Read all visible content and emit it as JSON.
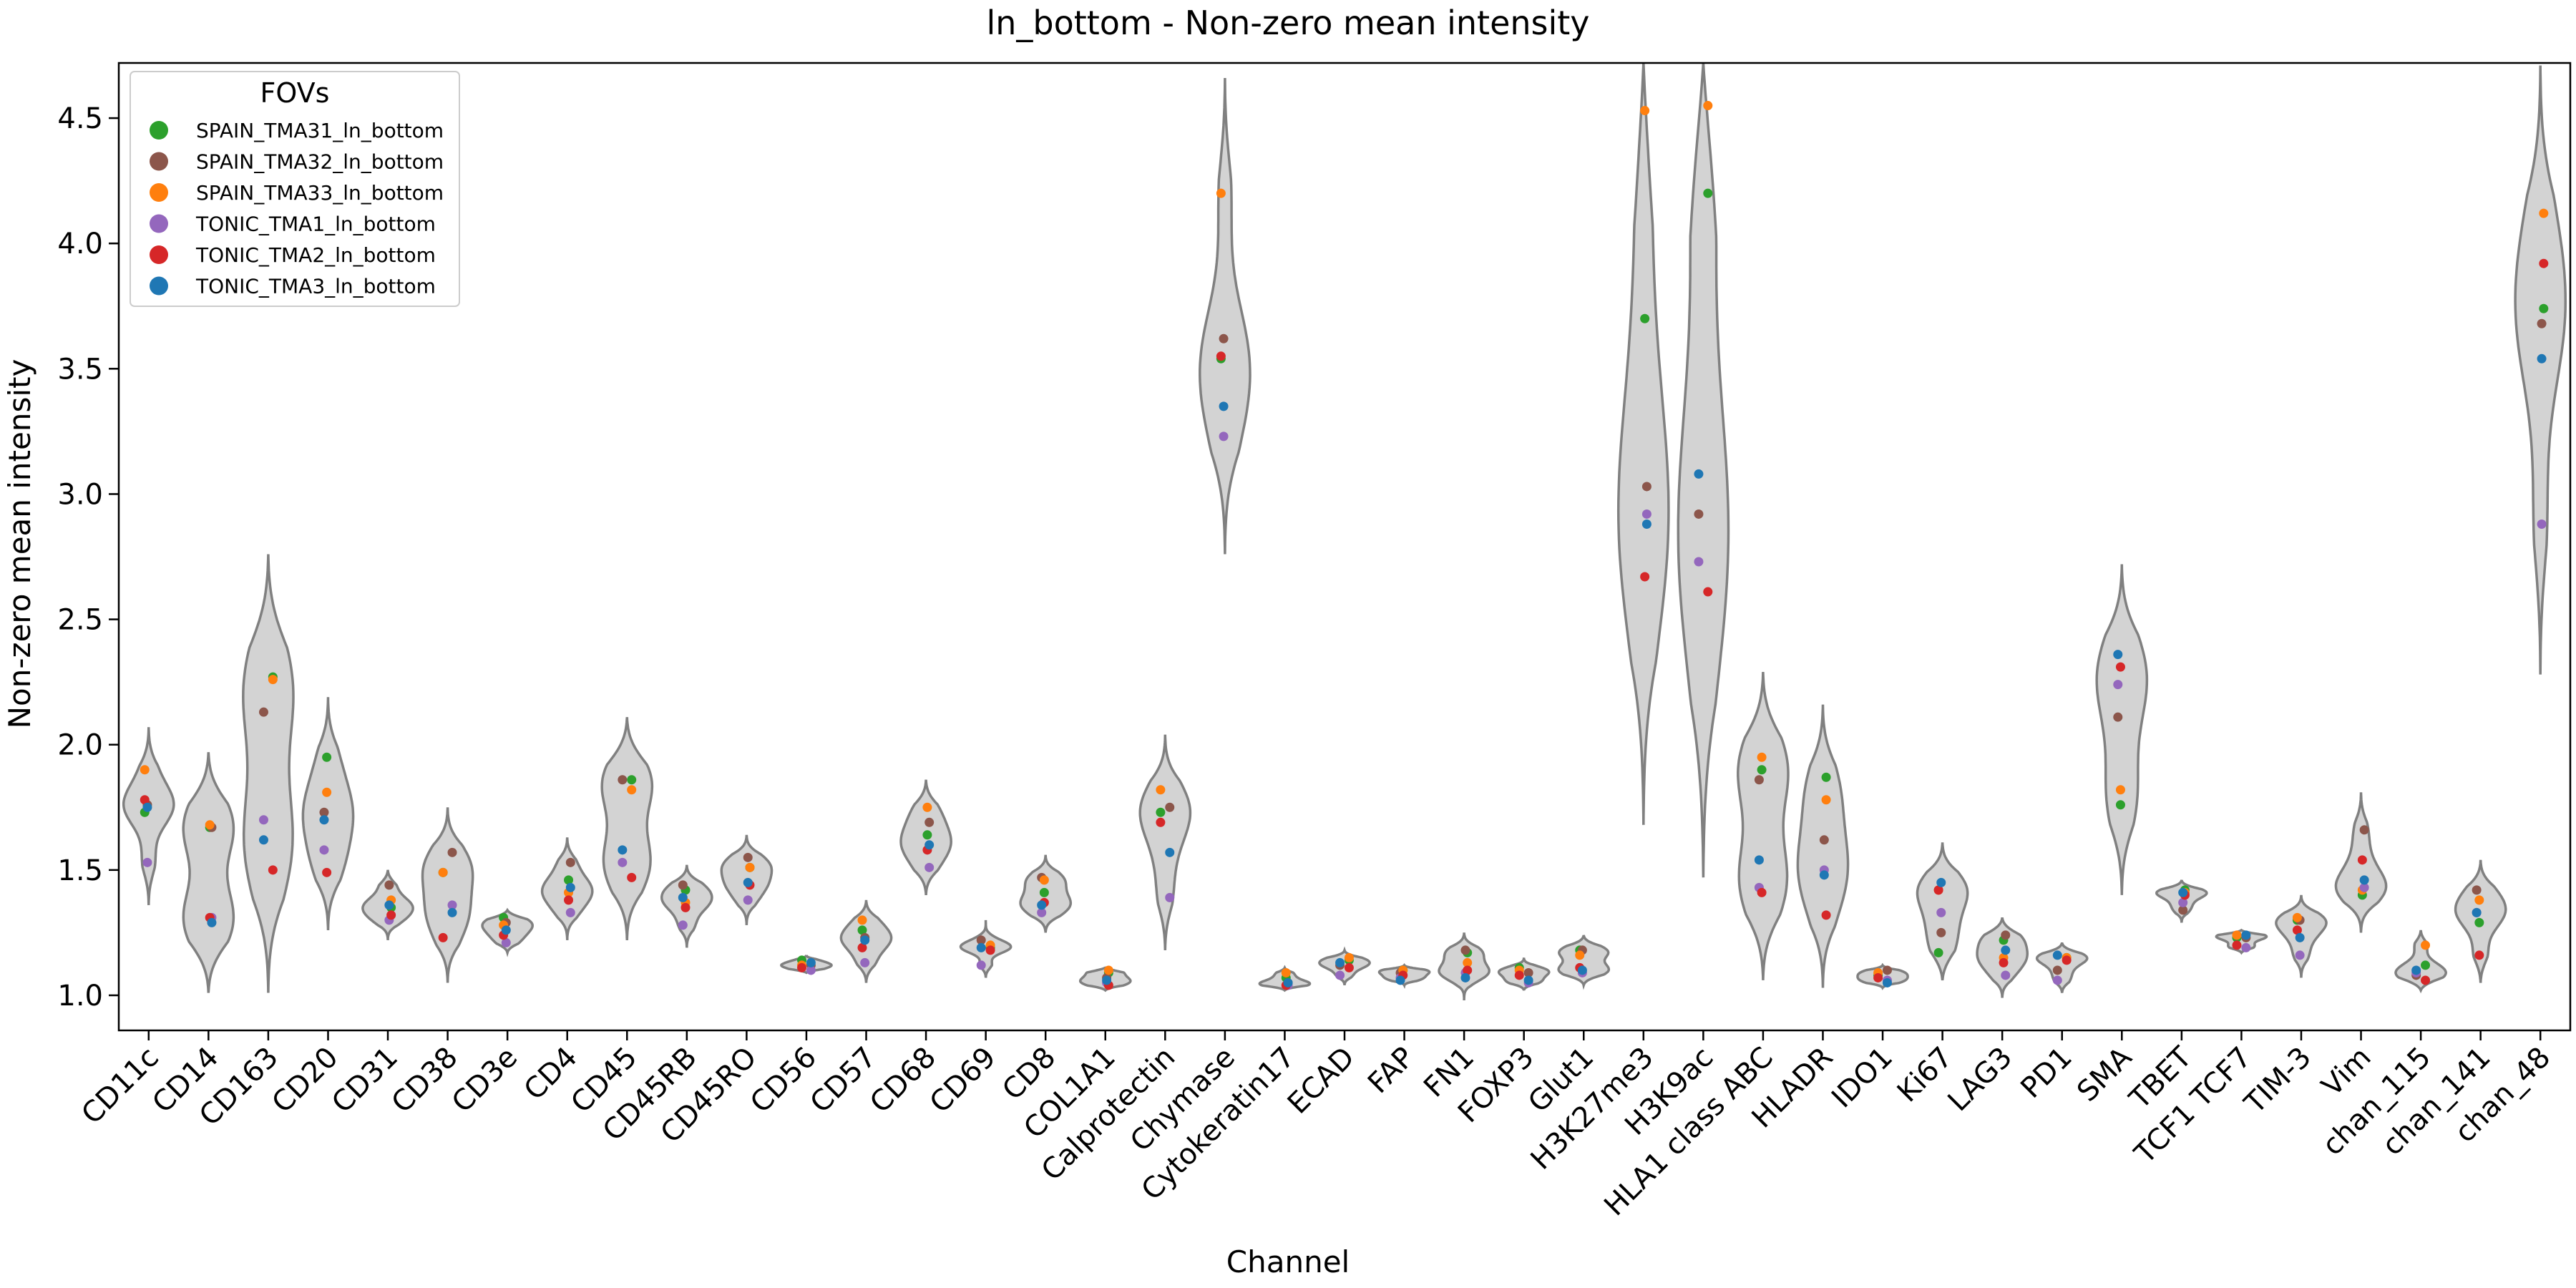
{
  "chart_data": {
    "type": "violin",
    "title": "ln_bottom - Non-zero mean intensity",
    "xlabel": "Channel",
    "ylabel": "Non-zero mean intensity",
    "ylim": [
      0.86,
      4.72
    ],
    "yticks": [
      1.0,
      1.5,
      2.0,
      2.5,
      3.0,
      3.5,
      4.0,
      4.5
    ],
    "ytick_labels": [
      "1.0",
      "1.5",
      "2.0",
      "2.5",
      "3.0",
      "3.5",
      "4.0",
      "4.5"
    ],
    "grid": false,
    "legend": {
      "title": "FOVs",
      "placement": "top-left"
    },
    "violin_color": "#d3d3d3",
    "violin_edge_color": "#808080",
    "categories": [
      "CD11c",
      "CD14",
      "CD163",
      "CD20",
      "CD31",
      "CD38",
      "CD3e",
      "CD4",
      "CD45",
      "CD45RB",
      "CD45RO",
      "CD56",
      "CD57",
      "CD68",
      "CD69",
      "CD8",
      "COL1A1",
      "Calprotectin",
      "Chymase",
      "Cytokeratin17",
      "ECAD",
      "FAP",
      "FN1",
      "FOXP3",
      "Glut1",
      "H3K27me3",
      "H3K9ac",
      "HLA1 class ABC",
      "HLADR",
      "IDO1",
      "Ki67",
      "LAG3",
      "PD1",
      "SMA",
      "TBET",
      "TCF1 TCF7",
      "TIM-3",
      "Vim",
      "chan_115",
      "chan_141",
      "chan_48"
    ],
    "series": [
      {
        "name": "SPAIN_TMA31_ln_bottom",
        "color": "#2ca02c",
        "values": [
          1.73,
          1.67,
          2.27,
          1.95,
          1.35,
          1.49,
          1.31,
          1.46,
          1.86,
          1.42,
          1.51,
          1.14,
          1.26,
          1.64,
          1.19,
          1.41,
          1.09,
          1.73,
          3.54,
          1.07,
          1.14,
          1.1,
          1.17,
          1.11,
          1.18,
          3.7,
          4.2,
          1.9,
          1.87,
          1.08,
          1.17,
          1.22,
          1.15,
          1.76,
          1.42,
          1.23,
          1.3,
          1.4,
          1.12,
          1.29,
          3.74
        ]
      },
      {
        "name": "SPAIN_TMA32_ln_bottom",
        "color": "#8c564b",
        "values": [
          1.76,
          1.67,
          2.13,
          1.73,
          1.44,
          1.57,
          1.29,
          1.53,
          1.86,
          1.44,
          1.55,
          1.12,
          1.23,
          1.69,
          1.22,
          1.47,
          1.07,
          1.75,
          3.62,
          1.05,
          1.12,
          1.09,
          1.18,
          1.09,
          1.18,
          3.03,
          2.92,
          1.86,
          1.62,
          1.1,
          1.25,
          1.24,
          1.1,
          2.11,
          1.34,
          1.23,
          1.3,
          1.66,
          1.08,
          1.42,
          3.68
        ]
      },
      {
        "name": "SPAIN_TMA33_ln_bottom",
        "color": "#ff7f0e",
        "values": [
          1.9,
          1.68,
          2.26,
          1.81,
          1.38,
          1.49,
          1.28,
          1.41,
          1.82,
          1.37,
          1.51,
          1.12,
          1.3,
          1.75,
          1.2,
          1.46,
          1.1,
          1.82,
          4.2,
          1.09,
          1.15,
          1.1,
          1.13,
          1.1,
          1.16,
          4.53,
          4.55,
          1.95,
          1.78,
          1.09,
          1.42,
          1.15,
          1.15,
          1.82,
          1.41,
          1.24,
          1.31,
          1.42,
          1.2,
          1.38,
          4.12
        ]
      },
      {
        "name": "TONIC_TMA1_ln_bottom",
        "color": "#9467bd",
        "values": [
          1.53,
          1.31,
          1.7,
          1.58,
          1.3,
          1.36,
          1.21,
          1.33,
          1.53,
          1.28,
          1.38,
          1.1,
          1.13,
          1.51,
          1.12,
          1.33,
          1.05,
          1.39,
          3.23,
          1.04,
          1.08,
          1.07,
          1.09,
          1.05,
          1.09,
          2.92,
          2.73,
          1.43,
          1.5,
          1.06,
          1.33,
          1.08,
          1.06,
          2.24,
          1.37,
          1.19,
          1.16,
          1.43,
          1.09,
          1.33,
          2.88
        ]
      },
      {
        "name": "TONIC_TMA2_ln_bottom",
        "color": "#d62728",
        "values": [
          1.78,
          1.31,
          1.5,
          1.49,
          1.32,
          1.23,
          1.24,
          1.38,
          1.47,
          1.35,
          1.44,
          1.11,
          1.19,
          1.58,
          1.18,
          1.37,
          1.04,
          1.69,
          3.55,
          1.04,
          1.11,
          1.08,
          1.1,
          1.08,
          1.11,
          2.67,
          2.61,
          1.41,
          1.32,
          1.07,
          1.42,
          1.13,
          1.14,
          2.31,
          1.4,
          1.2,
          1.26,
          1.54,
          1.06,
          1.16,
          3.92
        ]
      },
      {
        "name": "TONIC_TMA3_ln_bottom",
        "color": "#1f77b4",
        "values": [
          1.75,
          1.29,
          1.62,
          1.7,
          1.36,
          1.33,
          1.26,
          1.43,
          1.58,
          1.39,
          1.45,
          1.13,
          1.22,
          1.6,
          1.19,
          1.36,
          1.06,
          1.57,
          3.35,
          1.05,
          1.13,
          1.06,
          1.07,
          1.06,
          1.1,
          2.88,
          3.08,
          1.54,
          1.48,
          1.05,
          1.45,
          1.18,
          1.16,
          2.36,
          1.41,
          1.24,
          1.23,
          1.46,
          1.1,
          1.33,
          3.54
        ]
      }
    ],
    "violin_extents": [
      [
        1.36,
        2.07
      ],
      [
        1.01,
        1.97
      ],
      [
        1.01,
        2.76
      ],
      [
        1.26,
        2.19
      ],
      [
        1.22,
        1.5
      ],
      [
        1.05,
        1.75
      ],
      [
        1.17,
        1.34
      ],
      [
        1.22,
        1.63
      ],
      [
        1.22,
        2.11
      ],
      [
        1.19,
        1.52
      ],
      [
        1.28,
        1.64
      ],
      [
        1.09,
        1.16
      ],
      [
        1.05,
        1.38
      ],
      [
        1.4,
        1.86
      ],
      [
        1.07,
        1.3
      ],
      [
        1.25,
        1.56
      ],
      [
        1.02,
        1.11
      ],
      [
        1.18,
        2.04
      ],
      [
        2.76,
        4.66
      ],
      [
        1.02,
        1.11
      ],
      [
        1.04,
        1.18
      ],
      [
        1.04,
        1.12
      ],
      [
        0.98,
        1.25
      ],
      [
        1.02,
        1.15
      ],
      [
        1.04,
        1.24
      ],
      [
        1.68,
        4.72
      ],
      [
        1.47,
        4.72
      ],
      [
        1.06,
        2.29
      ],
      [
        1.03,
        2.16
      ],
      [
        1.03,
        1.12
      ],
      [
        1.06,
        1.61
      ],
      [
        0.99,
        1.31
      ],
      [
        1.01,
        1.21
      ],
      [
        1.4,
        2.72
      ],
      [
        1.29,
        1.46
      ],
      [
        1.17,
        1.26
      ],
      [
        1.07,
        1.4
      ],
      [
        1.25,
        1.81
      ],
      [
        1.02,
        1.26
      ],
      [
        1.05,
        1.54
      ],
      [
        2.28,
        4.71
      ]
    ]
  }
}
